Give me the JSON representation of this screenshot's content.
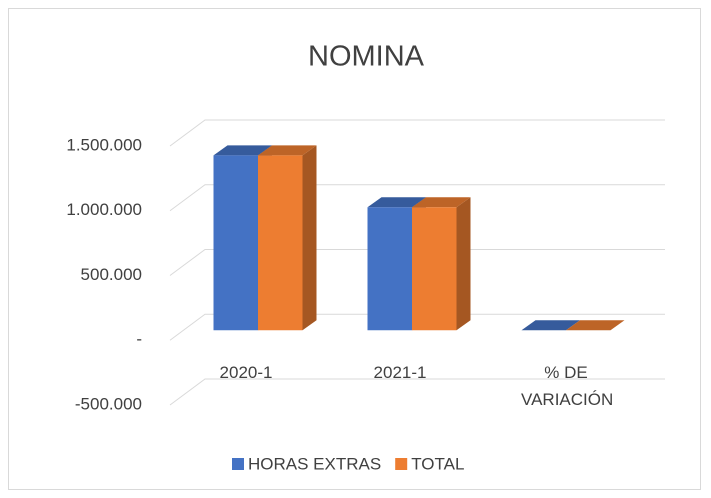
{
  "chart_data": {
    "type": "bar3d",
    "title": "NOMINA",
    "categories": [
      "2020-1",
      "2021-1",
      "% DE VARIACIÓN"
    ],
    "series": [
      {
        "name": "HORAS EXTRAS",
        "color": "#4472c4",
        "values": [
          1350000,
          950000,
          0
        ]
      },
      {
        "name": "TOTAL",
        "color": "#ed7d31",
        "values": [
          1350000,
          950000,
          0
        ]
      }
    ],
    "ylim": [
      -500000,
      1500000
    ],
    "yticks": [
      {
        "value": -500000,
        "label": "-500.000"
      },
      {
        "value": 0,
        "label": "-"
      },
      {
        "value": 500000,
        "label": "500.000"
      },
      {
        "value": 1000000,
        "label": "1.000.000"
      },
      {
        "value": 1500000,
        "label": "1.500.000"
      }
    ],
    "grid": true,
    "legend": "bottom"
  }
}
